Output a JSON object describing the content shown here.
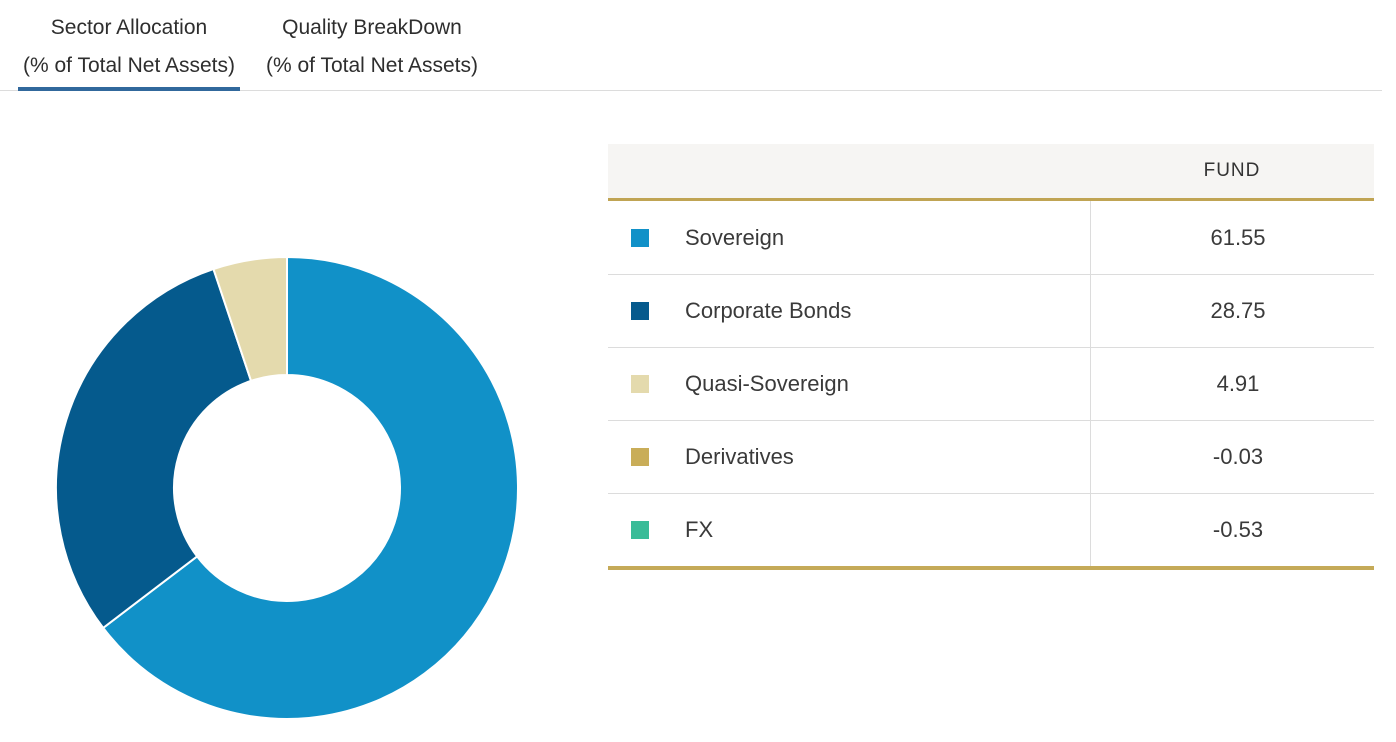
{
  "tabs": [
    {
      "label": "Sector Allocation",
      "sublabel": "(% of Total Net Assets)",
      "active": true
    },
    {
      "label": "Quality BreakDown",
      "sublabel": "(% of Total Net Assets)",
      "active": false
    }
  ],
  "table": {
    "fund_header": "FUND",
    "rows": [
      {
        "label": "Sovereign",
        "value": "61.55",
        "color": "#1191c8"
      },
      {
        "label": "Corporate Bonds",
        "value": "28.75",
        "color": "#055a8d"
      },
      {
        "label": "Quasi-Sovereign",
        "value": "4.91",
        "color": "#e4daad"
      },
      {
        "label": "Derivatives",
        "value": "-0.03",
        "color": "#c9ad58"
      },
      {
        "label": "FX",
        "value": "-0.53",
        "color": "#3abc98"
      }
    ]
  },
  "chart_data": {
    "type": "pie",
    "donut": true,
    "title": "Sector Allocation (% of Total Net Assets)",
    "categories": [
      "Sovereign",
      "Corporate Bonds",
      "Quasi-Sovereign",
      "Derivatives",
      "FX"
    ],
    "values": [
      61.55,
      28.75,
      4.91,
      -0.03,
      -0.53
    ],
    "colors": [
      "#1191c8",
      "#055a8d",
      "#e4daad",
      "#c9ad58",
      "#3abc98"
    ],
    "start_angle_deg": 0,
    "inner_radius_ratio": 0.49,
    "negatives_excluded_from_donut": true,
    "legend_position": "table-right"
  },
  "colors": {
    "active_tab_underline": "#31689c",
    "tab_border": "#dcdcdc",
    "table_gold_accent": "#c5aa58",
    "header_background": "#f6f5f3",
    "row_divider": "#dcdcdc"
  }
}
